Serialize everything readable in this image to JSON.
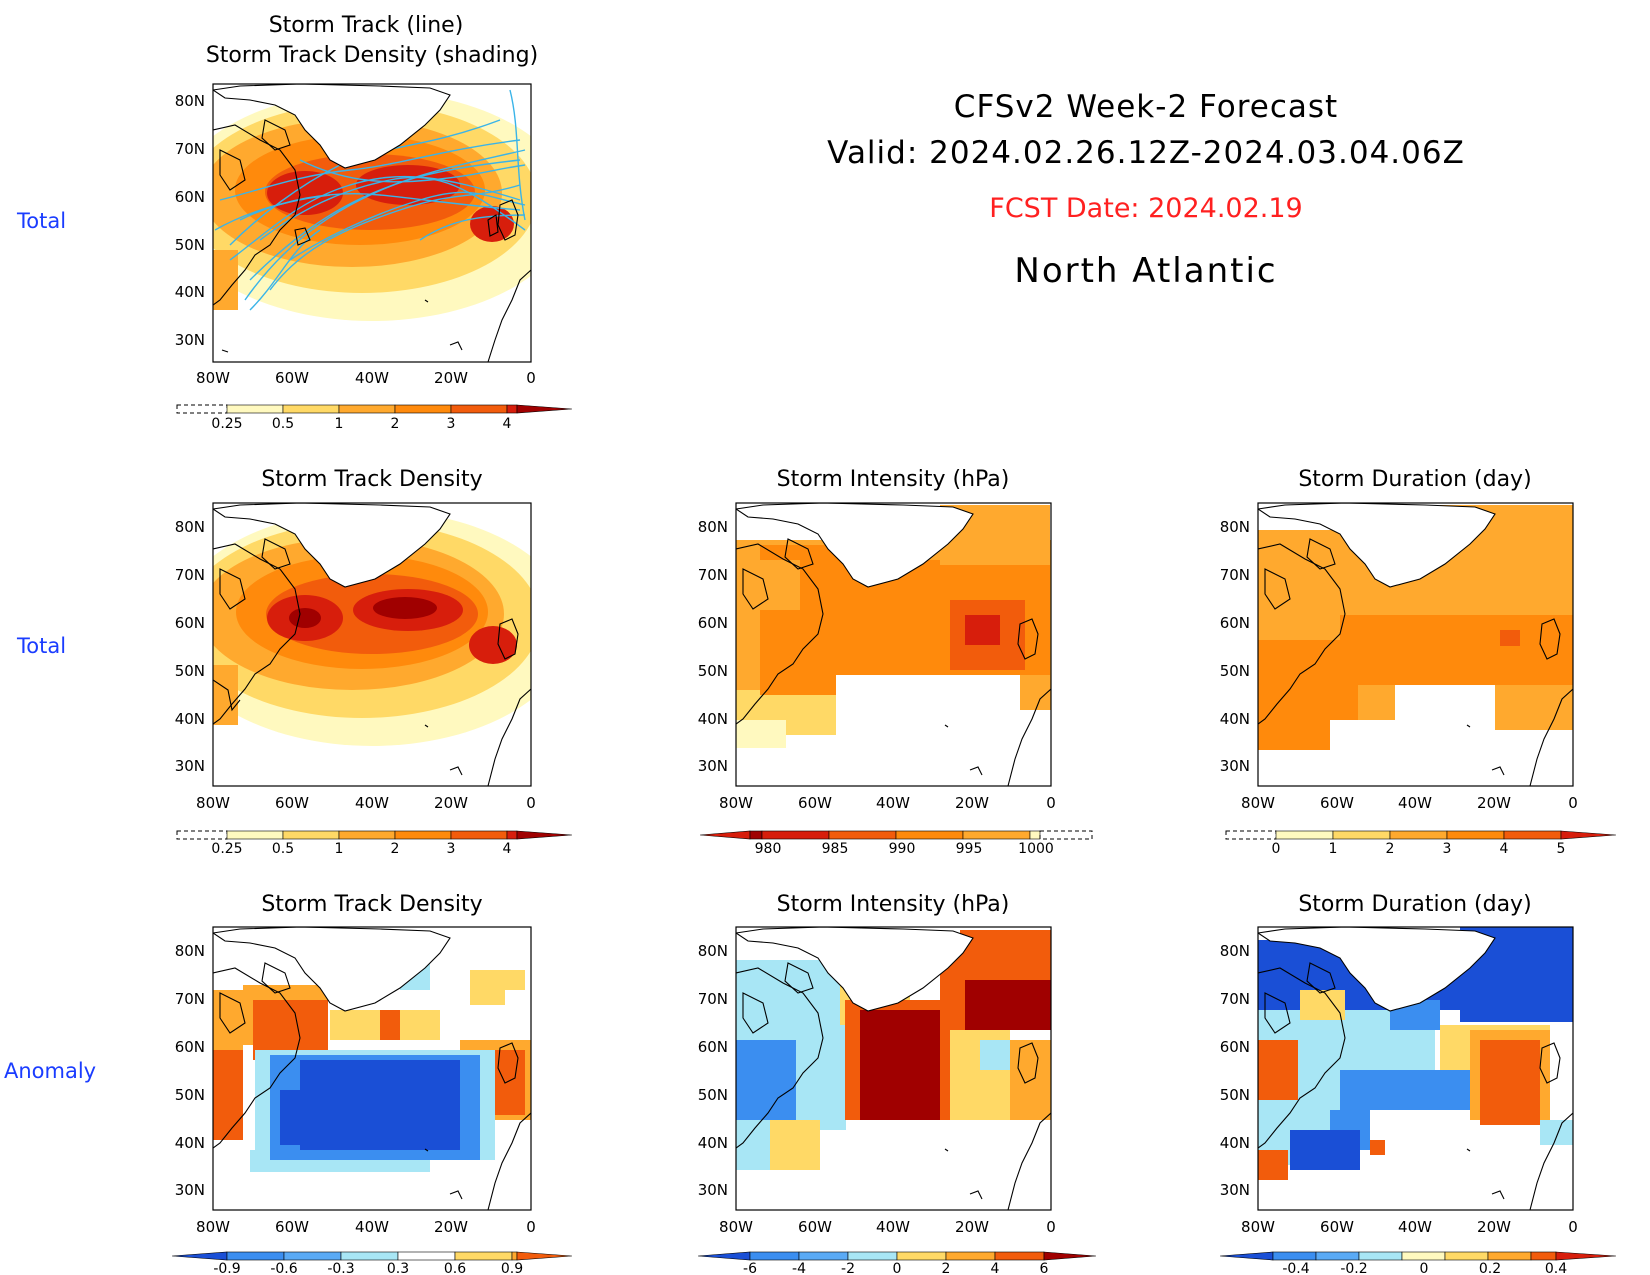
{
  "header": {
    "line1": "CFSv2 Week-2 Forecast",
    "line2": "Valid: 2024.02.26.12Z-2024.03.04.06Z",
    "fcst": "FCST Date: 2024.02.19",
    "region": "North Atlantic"
  },
  "row_labels": [
    "Total",
    "Total",
    "Anomaly"
  ],
  "axes": {
    "lon_ticks": [
      "80W",
      "60W",
      "40W",
      "20W",
      "0"
    ],
    "lat_ticks": [
      "80N",
      "70N",
      "60N",
      "50N",
      "40N",
      "30N"
    ],
    "lon_range": [
      -80,
      0
    ],
    "lat_range": [
      25,
      85
    ]
  },
  "colors": {
    "track_line": "#3ab4e8",
    "warm": [
      "#fff9bf",
      "#ffd966",
      "#ffa92e",
      "#ff8a0c",
      "#f25c0c",
      "#d71e0c",
      "#a00000"
    ],
    "cool": [
      "#1a4fd6",
      "#3b8ef0",
      "#a8e6f5"
    ]
  },
  "panels": [
    {
      "id": "track-total",
      "title_lines": [
        "Storm Track (line)",
        "Storm Track Density (shading)"
      ],
      "colorbar": {
        "labels": [
          "0.25",
          "0.5",
          "1",
          "2",
          "3",
          "4"
        ],
        "type": "warm-up"
      }
    },
    {
      "id": "density-total",
      "title_lines": [
        "Storm Track Density"
      ],
      "colorbar": {
        "labels": [
          "0.25",
          "0.5",
          "1",
          "2",
          "3",
          "4"
        ],
        "type": "warm-up"
      }
    },
    {
      "id": "intensity-total",
      "title_lines": [
        "Storm Intensity (hPa)"
      ],
      "colorbar": {
        "labels": [
          "980",
          "985",
          "990",
          "995",
          "1000"
        ],
        "type": "warm-down"
      }
    },
    {
      "id": "duration-total",
      "title_lines": [
        "Storm Duration (day)"
      ],
      "colorbar": {
        "labels": [
          "0",
          "1",
          "2",
          "3",
          "4",
          "5"
        ],
        "type": "warm-up"
      }
    },
    {
      "id": "density-anomaly",
      "title_lines": [
        "Storm Track Density"
      ],
      "colorbar": {
        "labels": [
          "-0.9",
          "-0.6",
          "-0.3",
          "0.3",
          "0.6",
          "0.9"
        ],
        "type": "diverging"
      }
    },
    {
      "id": "intensity-anomaly",
      "title_lines": [
        "Storm Intensity (hPa)"
      ],
      "colorbar": {
        "labels": [
          "-6",
          "-4",
          "-2",
          "0",
          "2",
          "4",
          "6"
        ],
        "type": "diverging"
      }
    },
    {
      "id": "duration-anomaly",
      "title_lines": [
        "Storm Duration (day)"
      ],
      "colorbar": {
        "labels": [
          "-0.4",
          "-0.2",
          "0",
          "0.2",
          "0.4"
        ],
        "type": "diverging"
      }
    }
  ]
}
